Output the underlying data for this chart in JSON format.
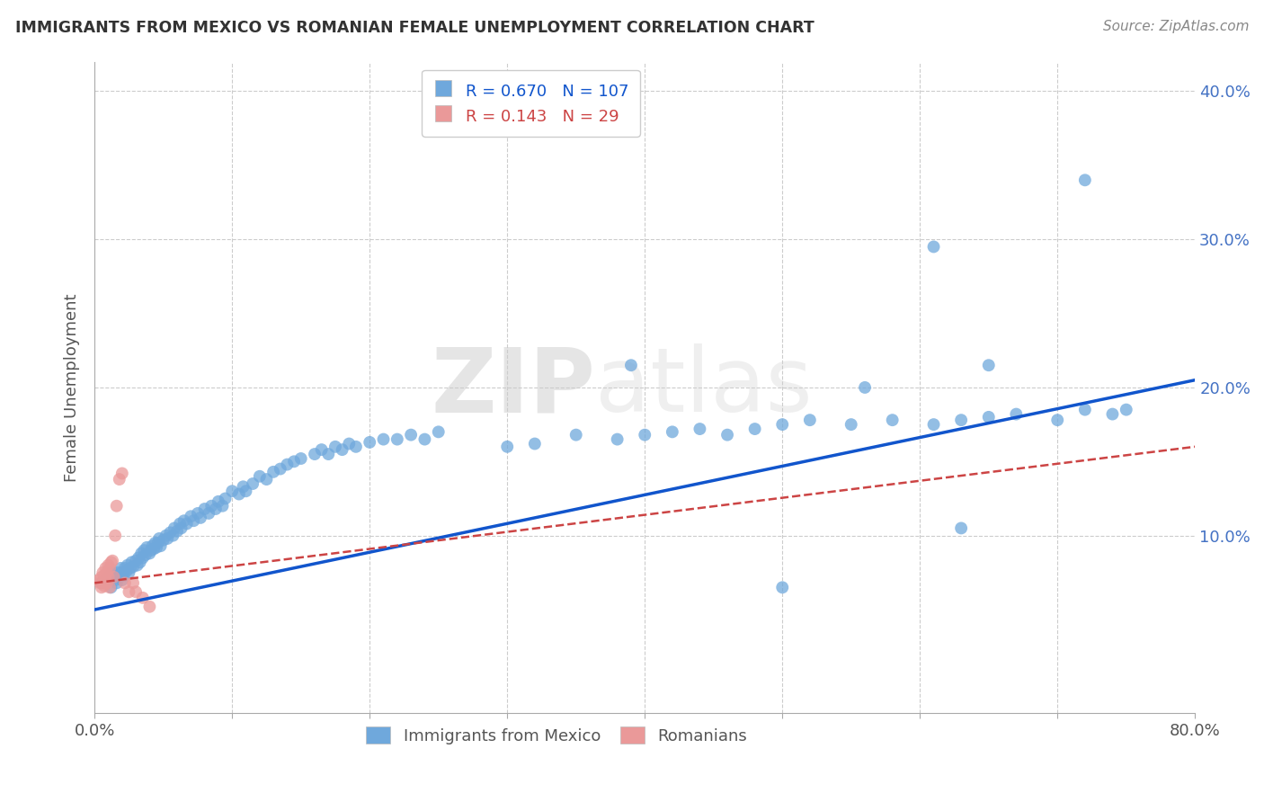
{
  "title": "IMMIGRANTS FROM MEXICO VS ROMANIAN FEMALE UNEMPLOYMENT CORRELATION CHART",
  "source": "Source: ZipAtlas.com",
  "ylabel": "Female Unemployment",
  "blue_color": "#6fa8dc",
  "pink_color": "#ea9999",
  "blue_line_color": "#1155cc",
  "pink_line_color": "#cc4444",
  "legend_R_blue": "0.670",
  "legend_N_blue": "107",
  "legend_R_pink": "0.143",
  "legend_N_pink": "29",
  "watermark_zip": "ZIP",
  "watermark_atlas": "atlas",
  "xlim": [
    0.0,
    0.8
  ],
  "ylim": [
    -0.02,
    0.42
  ],
  "blue_line_x": [
    0.0,
    0.8
  ],
  "blue_line_y": [
    0.05,
    0.205
  ],
  "pink_line_x": [
    0.0,
    0.8
  ],
  "pink_line_y": [
    0.068,
    0.16
  ],
  "blue_x": [
    0.005,
    0.008,
    0.01,
    0.012,
    0.013,
    0.015,
    0.015,
    0.016,
    0.017,
    0.018,
    0.019,
    0.02,
    0.02,
    0.021,
    0.022,
    0.023,
    0.024,
    0.025,
    0.026,
    0.027,
    0.028,
    0.03,
    0.031,
    0.032,
    0.033,
    0.034,
    0.035,
    0.036,
    0.037,
    0.038,
    0.04,
    0.041,
    0.042,
    0.043,
    0.044,
    0.045,
    0.046,
    0.047,
    0.048,
    0.05,
    0.052,
    0.053,
    0.055,
    0.057,
    0.058,
    0.06,
    0.062,
    0.063,
    0.065,
    0.067,
    0.07,
    0.072,
    0.075,
    0.077,
    0.08,
    0.083,
    0.085,
    0.088,
    0.09,
    0.093,
    0.095,
    0.1,
    0.105,
    0.108,
    0.11,
    0.115,
    0.12,
    0.125,
    0.13,
    0.135,
    0.14,
    0.145,
    0.15,
    0.16,
    0.165,
    0.17,
    0.175,
    0.18,
    0.185,
    0.19,
    0.2,
    0.21,
    0.22,
    0.23,
    0.24,
    0.25,
    0.3,
    0.32,
    0.35,
    0.38,
    0.4,
    0.42,
    0.44,
    0.46,
    0.48,
    0.5,
    0.52,
    0.55,
    0.58,
    0.61,
    0.63,
    0.65,
    0.67,
    0.7,
    0.72,
    0.74,
    0.75
  ],
  "blue_y": [
    0.068,
    0.07,
    0.072,
    0.065,
    0.075,
    0.07,
    0.073,
    0.068,
    0.075,
    0.072,
    0.078,
    0.07,
    0.075,
    0.073,
    0.078,
    0.076,
    0.08,
    0.075,
    0.078,
    0.082,
    0.079,
    0.083,
    0.08,
    0.085,
    0.082,
    0.088,
    0.085,
    0.09,
    0.087,
    0.092,
    0.088,
    0.09,
    0.093,
    0.091,
    0.095,
    0.092,
    0.095,
    0.098,
    0.093,
    0.097,
    0.1,
    0.098,
    0.102,
    0.1,
    0.105,
    0.103,
    0.108,
    0.105,
    0.11,
    0.108,
    0.113,
    0.11,
    0.115,
    0.112,
    0.118,
    0.115,
    0.12,
    0.118,
    0.123,
    0.12,
    0.125,
    0.13,
    0.128,
    0.133,
    0.13,
    0.135,
    0.14,
    0.138,
    0.143,
    0.145,
    0.148,
    0.15,
    0.152,
    0.155,
    0.158,
    0.155,
    0.16,
    0.158,
    0.162,
    0.16,
    0.163,
    0.165,
    0.165,
    0.168,
    0.165,
    0.17,
    0.16,
    0.162,
    0.168,
    0.165,
    0.168,
    0.17,
    0.172,
    0.168,
    0.172,
    0.175,
    0.178,
    0.175,
    0.178,
    0.175,
    0.178,
    0.18,
    0.182,
    0.178,
    0.185,
    0.182,
    0.185
  ],
  "blue_outlier_x": [
    0.39,
    0.5,
    0.56,
    0.61,
    0.63,
    0.65,
    0.72
  ],
  "blue_outlier_y": [
    0.215,
    0.065,
    0.2,
    0.295,
    0.105,
    0.215,
    0.34
  ],
  "pink_x": [
    0.003,
    0.004,
    0.005,
    0.005,
    0.006,
    0.006,
    0.007,
    0.007,
    0.008,
    0.008,
    0.009,
    0.009,
    0.01,
    0.01,
    0.011,
    0.011,
    0.012,
    0.013,
    0.014,
    0.015,
    0.016,
    0.018,
    0.02,
    0.022,
    0.025,
    0.028,
    0.03,
    0.035,
    0.04
  ],
  "pink_y": [
    0.07,
    0.068,
    0.072,
    0.065,
    0.075,
    0.068,
    0.073,
    0.066,
    0.078,
    0.07,
    0.075,
    0.068,
    0.08,
    0.072,
    0.078,
    0.065,
    0.082,
    0.083,
    0.072,
    0.1,
    0.12,
    0.138,
    0.142,
    0.068,
    0.062,
    0.068,
    0.062,
    0.058,
    0.052
  ],
  "background_color": "#ffffff"
}
